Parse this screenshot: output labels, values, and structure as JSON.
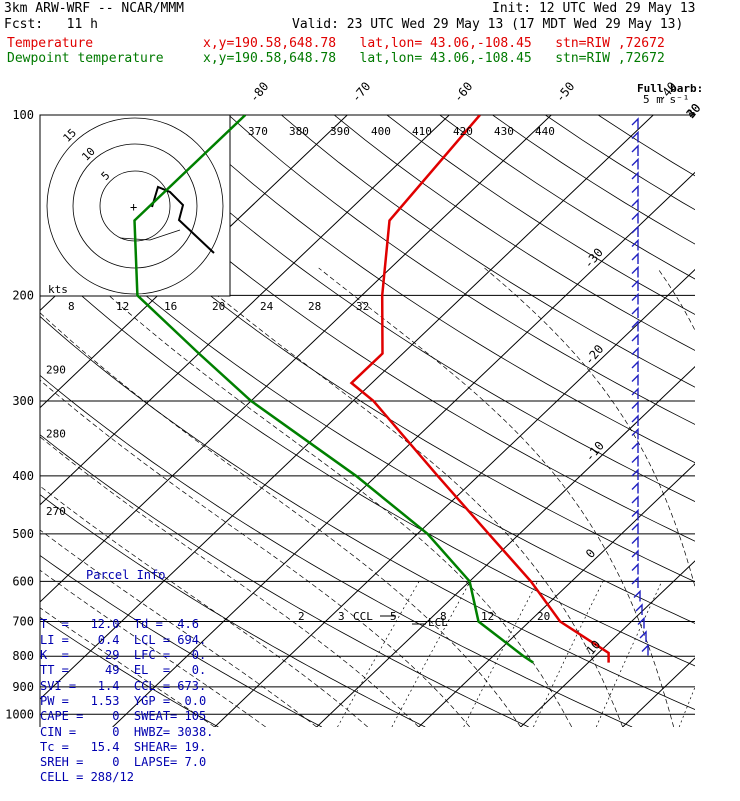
{
  "header": {
    "line1_left": "3km ARW-WRF -- NCAR/MMM",
    "line1_right": "Init: 12 UTC Wed 29 May 13",
    "line2_left": "Fcst:   11 h",
    "line2_right": "Valid: 23 UTC Wed 29 May 13 (17 MDT Wed 29 May 13)",
    "temp_label": "Temperature",
    "temp_loc": "x,y=190.58,648.78   lat,lon= 43.06,-108.45   stn=RIW ,72672",
    "dew_label": "Dewpoint temperature",
    "dew_loc": "x,y=190.58,648.78   lat,lon= 43.06,-108.45   stn=RIW ,72672"
  },
  "colors": {
    "temperature": "#e00000",
    "dewpoint": "#008000",
    "wind": "#2020c0",
    "parcel": "#0000b0"
  },
  "chart_data": {
    "type": "line",
    "y_axis": "pressure (hPa), log scale",
    "pressure_ticks": [
      100,
      200,
      300,
      400,
      500,
      600,
      700,
      800,
      900,
      1000
    ],
    "isotherm_labels_top": [
      -80,
      -70,
      -60,
      -50,
      -40
    ],
    "isotherm_labels_right": [
      -30,
      -20,
      -10,
      0,
      10,
      20,
      30,
      40
    ],
    "theta_e_labels": [
      370,
      380,
      390,
      400,
      410,
      420,
      430,
      440
    ],
    "theta_labels_left": [
      290,
      280,
      270
    ],
    "mixing_ratio_labels": [
      2,
      3,
      5,
      8,
      12,
      20
    ],
    "hodograph": {
      "speed_unit": "kts",
      "ring_labels": [
        "5",
        "10",
        "15"
      ],
      "x_ticks": [
        8,
        12,
        16,
        20,
        24,
        28,
        32
      ]
    },
    "barb_title": "Full barb:",
    "barb_value": "5 m s⁻¹",
    "annotations": [
      "CCL",
      "LCL"
    ],
    "series": [
      {
        "name": "Temperature",
        "points": [
          {
            "p": 100,
            "t": -57
          },
          {
            "p": 150,
            "t": -55
          },
          {
            "p": 200,
            "t": -48
          },
          {
            "p": 250,
            "t": -42
          },
          {
            "p": 280,
            "t": -42
          },
          {
            "p": 300,
            "t": -38
          },
          {
            "p": 400,
            "t": -24
          },
          {
            "p": 500,
            "t": -13
          },
          {
            "p": 600,
            "t": -4
          },
          {
            "p": 700,
            "t": 3
          },
          {
            "p": 790,
            "t": 11
          },
          {
            "p": 820,
            "t": 12
          }
        ]
      },
      {
        "name": "Dewpoint temperature",
        "points": [
          {
            "p": 100,
            "t": -80
          },
          {
            "p": 150,
            "t": -80
          },
          {
            "p": 200,
            "t": -72
          },
          {
            "p": 250,
            "t": -60
          },
          {
            "p": 300,
            "t": -50
          },
          {
            "p": 400,
            "t": -32
          },
          {
            "p": 500,
            "t": -19
          },
          {
            "p": 600,
            "t": -10
          },
          {
            "p": 700,
            "t": -5
          },
          {
            "p": 800,
            "t": 3
          },
          {
            "p": 820,
            "t": 4.6
          }
        ]
      }
    ]
  },
  "parcel": {
    "title": "Parcel Info",
    "rows": [
      "T  =   12.0  Td =  4.6",
      "LI =    0.4  LCL = 694.",
      "K  =     29  LFC =   0.",
      "TT =     49  EL  =   0.",
      "SVI =   1.4  CCL = 673.",
      "PW =   1.53  YGP =  0.0",
      "CAPE =    0  SWEAT= 105",
      "CIN =     0  HWBZ= 3038.",
      "Tc =   15.4  SHEAR= 19.",
      "SREH =    0  LAPSE= 7.0",
      "CELL = 288/12"
    ]
  }
}
